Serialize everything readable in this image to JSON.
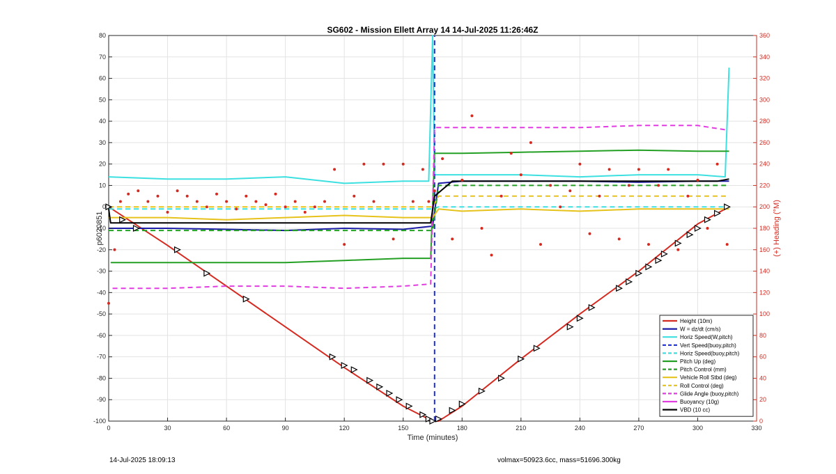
{
  "chart_data": {
    "type": "line",
    "title": "SG602 - Mission Ellett Array 14 14-Jul-2025 11:26:46Z",
    "xlabel": "Time (minutes)",
    "ylabel": "p6020851",
    "y2label": "(+) Heading (°M)",
    "xlim": [
      0,
      330
    ],
    "ylim": [
      -100,
      80
    ],
    "y2lim": [
      0,
      360
    ],
    "xticks": [
      0,
      30,
      60,
      90,
      120,
      150,
      180,
      210,
      240,
      270,
      300,
      330
    ],
    "yticks": [
      -100,
      -90,
      -80,
      -70,
      -60,
      -50,
      -40,
      -30,
      -20,
      -10,
      0,
      10,
      20,
      30,
      40,
      50,
      60,
      70,
      80
    ],
    "y2ticks": [
      0,
      20,
      40,
      60,
      80,
      100,
      120,
      140,
      160,
      180,
      200,
      220,
      240,
      260,
      280,
      300,
      320,
      340,
      360
    ],
    "grid": true,
    "legend_position": "bottom-right",
    "series": [
      {
        "name": "Height (10m)",
        "color": "#d42a20",
        "style": "solid",
        "x": [
          0,
          30,
          60,
          90,
          120,
          150,
          165,
          168,
          180,
          210,
          240,
          270,
          300,
          316
        ],
        "y": [
          0,
          -18,
          -37,
          -56,
          -75,
          -93,
          -100,
          -100,
          -93,
          -71,
          -50,
          -30,
          -8,
          0
        ]
      },
      {
        "name": "W = dz/dt (cm/s)",
        "color": "#1a1aa6",
        "style": "solid",
        "x": [
          0,
          30,
          60,
          90,
          120,
          150,
          165,
          168,
          180,
          210,
          240,
          270,
          300,
          316
        ],
        "y": [
          -10,
          -10,
          -10.5,
          -11,
          -10,
          -10.5,
          -9,
          11,
          12,
          12,
          12,
          11.5,
          12,
          12
        ]
      },
      {
        "name": "Horiz Speed(W,pitch)",
        "color": "#3de0e0",
        "style": "solid",
        "x": [
          0,
          30,
          60,
          90,
          120,
          150,
          163,
          165,
          166,
          180,
          210,
          240,
          270,
          300,
          314,
          316
        ],
        "y": [
          14,
          13,
          13,
          14,
          11,
          12,
          12,
          80,
          15,
          15,
          15,
          14,
          15,
          15,
          14,
          65
        ]
      },
      {
        "name": "Vert Speed(buoy,pitch)",
        "color": "#1a2ee0",
        "style": "dashed",
        "x": [
          166,
          166
        ],
        "y": [
          -100,
          80
        ]
      },
      {
        "name": "Horiz Speed(buoy,pitch)",
        "color": "#3de0e0",
        "style": "dashed",
        "x": [
          0,
          165,
          168,
          316
        ],
        "y": [
          -1,
          -1,
          0,
          0
        ]
      },
      {
        "name": "Pitch Up (deg)",
        "color": "#23a023",
        "style": "solid",
        "x": [
          1,
          10,
          60,
          90,
          120,
          150,
          164,
          166,
          180,
          210,
          240,
          270,
          300,
          316
        ],
        "y": [
          -26,
          -26,
          -26,
          -26,
          -25,
          -24,
          -24,
          25,
          25,
          25.5,
          26,
          26.5,
          26,
          26
        ]
      },
      {
        "name": "Pitch Control (mm)",
        "color": "#23a023",
        "style": "dashed",
        "x": [
          0,
          165,
          168,
          316
        ],
        "y": [
          -11,
          -11,
          10,
          10
        ]
      },
      {
        "name": "Vehicle Roll Stbd (deg)",
        "color": "#e6c21a",
        "style": "solid",
        "x": [
          0,
          30,
          60,
          90,
          120,
          150,
          165,
          168,
          180,
          210,
          240,
          270,
          300,
          316
        ],
        "y": [
          -5,
          -5,
          -6,
          -5,
          -4,
          -5,
          -5,
          -1,
          -2,
          -1,
          -2,
          -1,
          -1,
          -1
        ]
      },
      {
        "name": "Roll Control (deg)",
        "color": "#e6c21a",
        "style": "dashed",
        "x": [
          0,
          165,
          168,
          316
        ],
        "y": [
          0,
          0,
          5,
          5
        ]
      },
      {
        "name": "Glide Angle (buoy,pitch)",
        "color": "#e03ce0",
        "style": "dashed",
        "x": [
          2,
          30,
          60,
          90,
          120,
          150,
          164,
          166,
          180,
          210,
          240,
          270,
          300,
          314
        ],
        "y": [
          -38,
          -38,
          -37,
          -37,
          -38,
          -37,
          -36,
          37,
          37,
          37,
          37,
          38,
          38,
          36
        ]
      },
      {
        "name": "Buoyancy (10g)",
        "color": "#e03ce0",
        "style": "solid",
        "x": [],
        "y": []
      },
      {
        "name": "VBD (10 cc)",
        "color": "#000000",
        "style": "solid",
        "x": [
          0,
          1,
          164,
          166,
          175,
          310,
          316
        ],
        "y": [
          -1,
          -7.5,
          -7.5,
          5,
          12,
          12,
          13
        ]
      }
    ],
    "heading_y2": {
      "name": "Heading",
      "color": "#d42a20",
      "style": "dots",
      "x": [
        0,
        3,
        6,
        10,
        15,
        20,
        25,
        30,
        35,
        40,
        45,
        50,
        55,
        60,
        65,
        70,
        75,
        80,
        85,
        90,
        95,
        100,
        105,
        110,
        115,
        120,
        125,
        130,
        135,
        140,
        145,
        150,
        155,
        160,
        163,
        166,
        170,
        175,
        180,
        185,
        190,
        195,
        200,
        205,
        210,
        215,
        220,
        225,
        230,
        235,
        240,
        245,
        250,
        255,
        260,
        265,
        270,
        275,
        280,
        285,
        290,
        295,
        300,
        305,
        310,
        315
      ],
      "y": [
        110,
        160,
        205,
        212,
        215,
        205,
        210,
        195,
        215,
        210,
        205,
        200,
        212,
        205,
        198,
        210,
        205,
        202,
        212,
        200,
        205,
        195,
        200,
        205,
        235,
        165,
        210,
        240,
        205,
        240,
        170,
        240,
        205,
        235,
        205,
        215,
        245,
        170,
        225,
        285,
        180,
        155,
        210,
        250,
        230,
        260,
        165,
        220,
        200,
        215,
        240,
        175,
        210,
        235,
        170,
        220,
        235,
        165,
        220,
        235,
        160,
        210,
        225,
        180,
        240,
        165
      ]
    },
    "depth_markers": {
      "x": [
        0,
        7,
        14,
        35,
        50,
        70,
        114,
        120,
        125,
        133,
        138,
        143,
        148,
        153,
        160,
        163,
        165,
        168,
        175,
        180,
        190,
        200,
        210,
        218,
        235,
        240,
        246,
        260,
        265,
        270,
        275,
        280,
        283,
        290,
        296,
        300,
        305,
        310,
        315
      ],
      "y": [
        0,
        -6,
        -10,
        -20,
        -31,
        -43,
        -70,
        -74,
        -76,
        -81,
        -84,
        -87,
        -90,
        -93,
        -97,
        -99,
        -100,
        -99,
        -95,
        -92,
        -86,
        -80,
        -71,
        -66,
        -56,
        -52,
        -47,
        -38,
        -35,
        -31,
        -28,
        -25,
        -22,
        -17,
        -13,
        -10,
        -6,
        -3,
        0
      ]
    }
  },
  "footer": {
    "date": "14-Jul-2025 18:09:13",
    "stats": "volmax=50923.6cc, mass=51696.300kg"
  }
}
